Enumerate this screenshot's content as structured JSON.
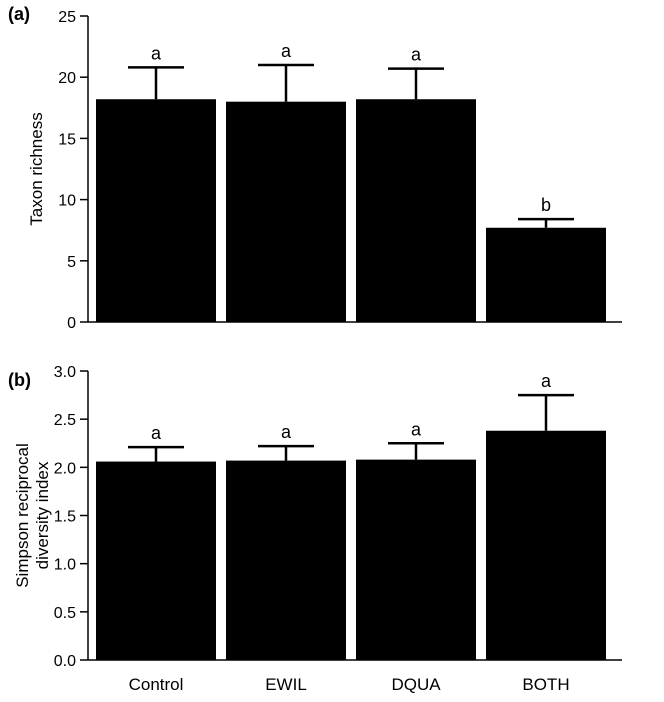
{
  "chart_data": [
    {
      "panel_label": "(a)",
      "type": "bar",
      "categories": [
        "Control",
        "EWIL",
        "DQUA",
        "BOTH"
      ],
      "values": [
        18.2,
        18.0,
        18.2,
        7.7
      ],
      "error_upper": [
        20.8,
        21.0,
        20.7,
        8.4
      ],
      "letters": [
        "a",
        "a",
        "a",
        "b"
      ],
      "ylabel": "Taxon richness",
      "ylim": [
        0,
        25
      ],
      "yticks": [
        "0",
        "5",
        "10",
        "15",
        "20",
        "25"
      ],
      "xlabel": "",
      "grid": false,
      "bar_color": "#000000"
    },
    {
      "panel_label": "(b)",
      "type": "bar",
      "categories": [
        "Control",
        "EWIL",
        "DQUA",
        "BOTH"
      ],
      "values": [
        2.06,
        2.07,
        2.08,
        2.38
      ],
      "error_upper": [
        2.21,
        2.22,
        2.25,
        2.75
      ],
      "letters": [
        "a",
        "a",
        "a",
        "a"
      ],
      "ylabel_lines": [
        "Simpson reciprocal",
        "diversity index"
      ],
      "ylim": [
        0,
        3
      ],
      "yticks": [
        "0.0",
        "0.5",
        "1.0",
        "1.5",
        "2.0",
        "2.5",
        "3.0"
      ],
      "xlabel": "",
      "grid": false,
      "bar_color": "#000000"
    }
  ]
}
